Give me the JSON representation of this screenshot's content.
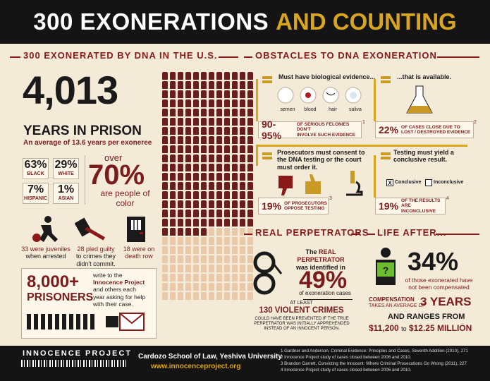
{
  "header": {
    "title_white": "300 EXONERATIONS",
    "title_gold": "AND COUNTING"
  },
  "left": {
    "section_title": "300 EXONERATED BY DNA IN THE U.S.",
    "years_number": "4,013",
    "years_label": "YEARS IN PRISON",
    "years_sub": "An average of 13.6 years per exoneree",
    "races": [
      {
        "pct": "63%",
        "label": "BLACK"
      },
      {
        "pct": "29%",
        "label": "WHITE"
      },
      {
        "pct": "7%",
        "label": "HISPANIC"
      },
      {
        "pct": "1%",
        "label": "ASIAN"
      }
    ],
    "color_over": "over",
    "color_pct": "70%",
    "color_text": "are people of color",
    "juveniles": {
      "count": "33",
      "text1": "were juveniles",
      "text2": "when arrested"
    },
    "guilty": {
      "count": "28",
      "text1": "pled guilty",
      "text2": "to crimes they",
      "text3": "didn't commit."
    },
    "deathrow": {
      "count": "18",
      "text1": "were on",
      "text2": "death row"
    },
    "prisoners_number": "8,000+",
    "prisoners_label": "PRISONERS",
    "prisoners_text1": "write to the",
    "prisoners_text2": "Innocence Project",
    "prisoners_text3": "and others each",
    "prisoners_text4": "year asking for help",
    "prisoners_text5": "with their case."
  },
  "right": {
    "section_title": "OBSTACLES TO DNA EXONERATION",
    "bio_title": "Must have biological evidence...",
    "available_title": "...that is available.",
    "samples": [
      "semen",
      "blood",
      "hair",
      "saliva"
    ],
    "stat1_pct": "90-95%",
    "stat1_text1": "OF SERIOUS FELONIES DON'T",
    "stat1_text2": "INVOLVE SUCH EVIDENCE",
    "stat1_ref": "1",
    "stat2_pct": "22%",
    "stat2_text1": "OF CASES CLOSE DUE TO",
    "stat2_text2": "LOST / DESTROYED EVIDENCE",
    "stat2_ref": "2",
    "prosecutors_title": "Prosecutors must consent to the DNA testing or the court must order it.",
    "testing_title": "Testing must yield a conclusive result.",
    "conclusive_label": "Conclusive",
    "inconclusive_label": "Inconclusive",
    "check_mark": "X",
    "stat3_pct": "19%",
    "stat3_text1": "OF PROSECUTORS",
    "stat3_text2": "OPPOSE TESTING",
    "stat3_ref": "3",
    "stat4_pct": "19%",
    "stat4_text1": "OF THE RESULTS",
    "stat4_text2": "ARE INCONCLUSIVE",
    "stat4_ref": "4",
    "perp_title": "REAL PERPETRATORS",
    "perp_text1": "The",
    "perp_text_bold": "REAL PERPETRATOR",
    "perp_text2": "was identified in",
    "perp_pct": "49%",
    "perp_text3": "of exoneration cases",
    "at_least": "AT LEAST",
    "violent": "130 VIOLENT CRIMES",
    "violent_text1": "COULD HAVE BEEN PREVENTED IF THE TRUE",
    "violent_text2": "PERPETRATOR WAS INITIALLY APPREHENDED",
    "violent_text3": "INSTEAD OF AN INNOCENT PERSON.",
    "life_title": "LIFE AFTER...",
    "comp_pct": "34%",
    "comp_text1": "of those exonerated have",
    "comp_text2": "not been compensated",
    "comp_label": "COMPENSATION",
    "comp_avg": "TAKES AN AVERAGE OF",
    "comp_years": "3 YEARS",
    "ranges_label": "AND RANGES FROM",
    "range_low": "$11,200",
    "range_to": "to",
    "range_high": "$12.25 MILLION"
  },
  "footer": {
    "org": "INNOCENCE PROJECT",
    "school": "Cardozo School of Law, Yeshiva University",
    "url": "www.innocenceproject.org",
    "refs": [
      "1 Gardner and Anderson, Criminal Evidence: Principles and Cases, Seventh Addition (2010), 271",
      "2 Innocence Project study of cases closed between 2006 and 2010.",
      "3 Brandon Garrett, Convicting the Innocent: Where Criminal Prosecutions Go Wrong (2011), 227",
      "4 Innocence Project study of cases closed between 2006 and 2010."
    ]
  }
}
